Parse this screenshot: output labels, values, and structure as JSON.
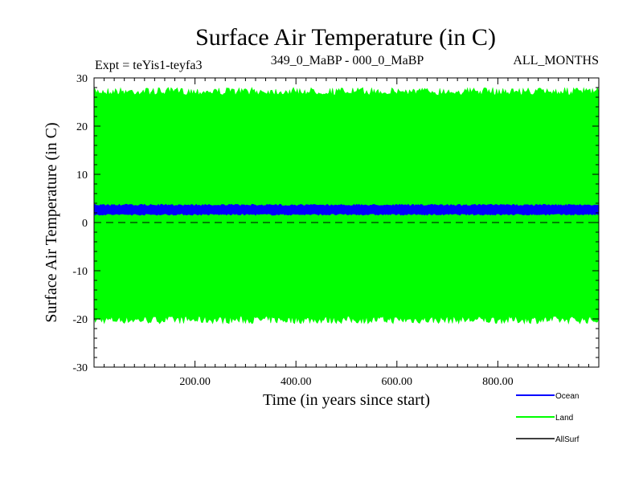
{
  "chart_data": {
    "type": "area",
    "title": "Surface Air Temperature (in C)",
    "subtitle_left": "Expt = teYis1-teyfa3",
    "subtitle_center": "349_0_MaBP - 000_0_MaBP",
    "subtitle_right": "ALL_MONTHS",
    "xlabel": "Time (in years since start)",
    "ylabel": "Surface Air Temperature (in C)",
    "xlim": [
      0,
      1000
    ],
    "ylim": [
      -30,
      30
    ],
    "x_ticks": [
      200,
      400,
      600,
      800
    ],
    "x_tick_labels": [
      "200.00",
      "400.00",
      "600.00",
      "800.00"
    ],
    "y_ticks": [
      -30,
      -20,
      -10,
      0,
      10,
      20,
      30
    ],
    "y_tick_labels": [
      "-30",
      "-20",
      "-10",
      "0",
      "10",
      "20",
      "30"
    ],
    "reference_line": 0,
    "series": [
      {
        "name": "Land",
        "color": "#00ff00",
        "min": -21,
        "max": 28,
        "mean": 3
      },
      {
        "name": "Ocean",
        "color": "#0000ff",
        "min": 1.5,
        "max": 3.8,
        "mean": 2.6
      },
      {
        "name": "AllSurf",
        "color": "#000000",
        "min": null,
        "max": null,
        "mean": null
      }
    ],
    "legend": {
      "position": "bottom-right",
      "entries": [
        {
          "label": "Ocean",
          "color": "#0000ff"
        },
        {
          "label": "Land",
          "color": "#00ff00"
        },
        {
          "label": "AllSurf",
          "color": "#000000"
        }
      ]
    }
  }
}
